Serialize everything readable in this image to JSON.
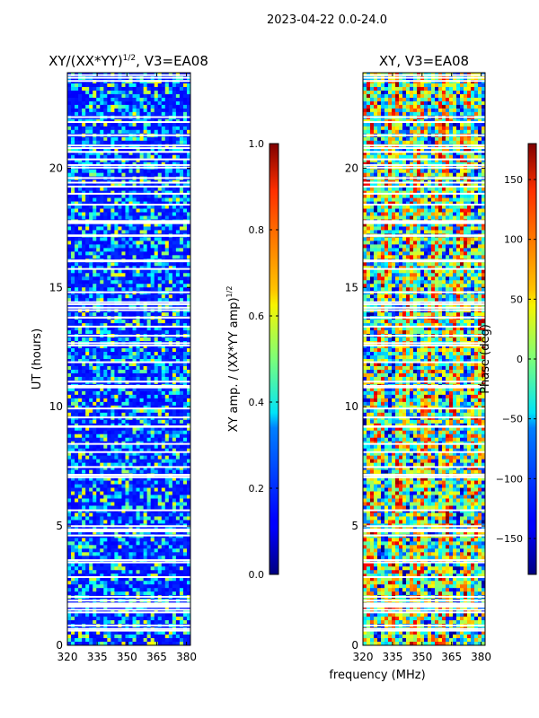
{
  "suptitle": "2023-04-22 0.0-24.0",
  "chart_data": [
    {
      "type": "heatmap",
      "title": "XY/(XX*YY)",
      "title_sup": "1/2",
      "title_suffix": ", V3=EA08",
      "ylabel": "UT (hours)",
      "xlabel": "",
      "xlim": [
        320,
        382
      ],
      "ylim": [
        0,
        24
      ],
      "xticks": [
        320,
        335,
        350,
        365,
        380
      ],
      "yticks": [
        0,
        5,
        10,
        15,
        20
      ],
      "xtick_labels": [
        "320",
        "335",
        "350",
        "365",
        "380"
      ],
      "ytick_labels": [
        "0",
        "5",
        "10",
        "15",
        "20"
      ],
      "colorbar": {
        "label": "XY amp. / (XX*YY amp)",
        "label_sup": "1/2",
        "range": [
          0.0,
          1.0
        ],
        "ticks": [
          0.0,
          0.2,
          0.4,
          0.6,
          0.8,
          1.0
        ],
        "tick_labels": [
          "0.0",
          "0.2",
          "0.4",
          "0.6",
          "0.8",
          "1.0"
        ],
        "colormap": "jet"
      }
    },
    {
      "type": "heatmap",
      "title": "XY, V3=EA08",
      "ylabel": "",
      "xlabel": "frequency (MHz)",
      "xlim": [
        320,
        382
      ],
      "ylim": [
        0,
        24
      ],
      "xticks": [
        320,
        335,
        350,
        365,
        380
      ],
      "yticks": [
        0,
        5,
        10,
        15,
        20
      ],
      "xtick_labels": [
        "320",
        "335",
        "350",
        "365",
        "380"
      ],
      "ytick_labels": [
        "0",
        "5",
        "10",
        "15",
        "20"
      ],
      "colorbar": {
        "label": "Phase (deg)",
        "range": [
          -180,
          180
        ],
        "ticks": [
          -150,
          -100,
          -50,
          0,
          50,
          100,
          150
        ],
        "tick_labels": [
          "−150",
          "−100",
          "−50",
          "0",
          "50",
          "100",
          "150"
        ],
        "colormap": "jet"
      }
    }
  ]
}
